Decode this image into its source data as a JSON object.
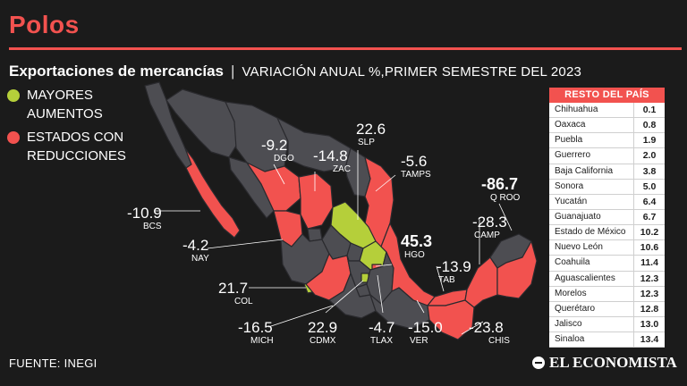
{
  "header": {
    "title": "Polos",
    "subtitle_main": "Exportaciones de mercancías",
    "subtitle_separator": "|",
    "subtitle_rest": "VARIACIÓN ANUAL %,PRIMER SEMESTRE DEL 2023"
  },
  "legend": {
    "increase": {
      "label": "MAYORES AUMENTOS",
      "color": "#b5cf3a"
    },
    "decrease": {
      "label": "ESTADOS CON REDUCCIONES",
      "color": "#f2524f"
    }
  },
  "map_labels": [
    {
      "value": "-10.9",
      "abbr": "BCS"
    },
    {
      "value": "-9.2",
      "abbr": "DGO"
    },
    {
      "value": "-14.8",
      "abbr": "ZAC"
    },
    {
      "value": "22.6",
      "abbr": "SLP"
    },
    {
      "value": "-5.6",
      "abbr": "TAMPS"
    },
    {
      "value": "-86.7",
      "abbr": "Q ROO"
    },
    {
      "value": "-28.3",
      "abbr": "CAMP"
    },
    {
      "value": "45.3",
      "abbr": "HGO"
    },
    {
      "value": "-4.2",
      "abbr": "NAY"
    },
    {
      "value": "-13.9",
      "abbr": "TAB"
    },
    {
      "value": "21.7",
      "abbr": "COL"
    },
    {
      "value": "-16.5",
      "abbr": "MICH"
    },
    {
      "value": "22.9",
      "abbr": "CDMX"
    },
    {
      "value": "-4.7",
      "abbr": "TLAX"
    },
    {
      "value": "-15.0",
      "abbr": "VER"
    },
    {
      "value": "-23.8",
      "abbr": "CHIS"
    }
  ],
  "rest_of_country": {
    "title": "RESTO DEL PAÍS",
    "rows": [
      {
        "state": "Chihuahua",
        "value": "0.1"
      },
      {
        "state": "Oaxaca",
        "value": "0.8"
      },
      {
        "state": "Puebla",
        "value": "1.9"
      },
      {
        "state": "Guerrero",
        "value": "2.0"
      },
      {
        "state": "Baja California",
        "value": "3.8"
      },
      {
        "state": "Sonora",
        "value": "5.0"
      },
      {
        "state": "Yucatán",
        "value": "6.4"
      },
      {
        "state": "Guanajuato",
        "value": "6.7"
      },
      {
        "state": "Estado de México",
        "value": "10.2"
      },
      {
        "state": "Nuevo León",
        "value": "10.6"
      },
      {
        "state": "Coahuila",
        "value": "11.4"
      },
      {
        "state": "Aguascalientes",
        "value": "12.3"
      },
      {
        "state": "Morelos",
        "value": "12.3"
      },
      {
        "state": "Querétaro",
        "value": "12.8"
      },
      {
        "state": "Jalisco",
        "value": "13.0"
      },
      {
        "state": "Sinaloa",
        "value": "13.4"
      }
    ]
  },
  "footer": {
    "source": "FUENTE: INEGI",
    "brand": "EL ECONOMISTA"
  },
  "colors": {
    "accent": "#f2524f",
    "increase": "#b5cf3a",
    "neutral_state": "#4d4d52",
    "background": "#1b1b1b"
  }
}
